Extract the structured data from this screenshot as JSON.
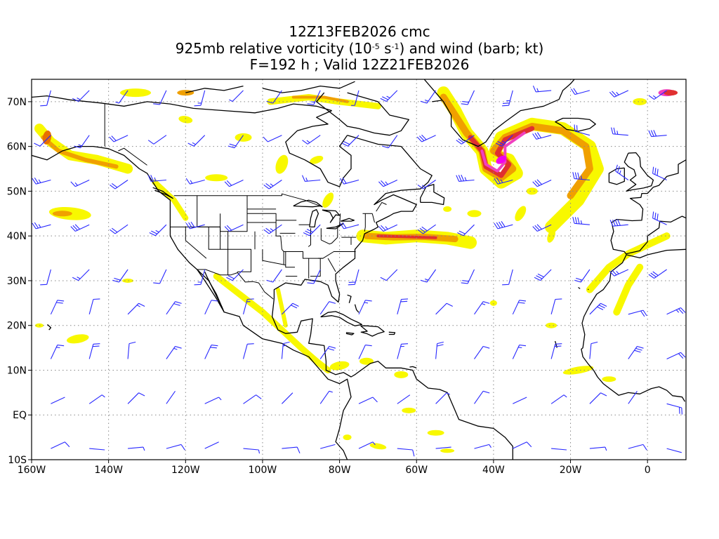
{
  "title": {
    "line1": "12Z13FEB2026 cmc",
    "line2_pre": "925mb relative vorticity (10",
    "line2_exp1": "-5",
    "line2_mid": " s",
    "line2_exp2": "-1",
    "line2_post": ") and wind (barb; kt)",
    "line3": "F=192 h ; Valid 12Z21FEB2026"
  },
  "axes": {
    "x_ticks": [
      "160W",
      "140W",
      "120W",
      "100W",
      "80W",
      "60W",
      "40W",
      "20W",
      "0"
    ],
    "y_ticks": [
      "70N",
      "60N",
      "50N",
      "40N",
      "30N",
      "20N",
      "10N",
      "EQ",
      "10S"
    ],
    "lon_range": [
      -160,
      10
    ],
    "lat_range": [
      -10,
      75
    ],
    "grid": "dotted"
  },
  "colors": {
    "yellow": "#f8f800",
    "light_yellow": "#fafa66",
    "orange": "#f0a000",
    "dark_orange": "#e87000",
    "red": "#e03030",
    "pink": "#f040c0",
    "magenta": "#f000f0",
    "barb": "#2828ff",
    "coast": "#000000"
  }
}
